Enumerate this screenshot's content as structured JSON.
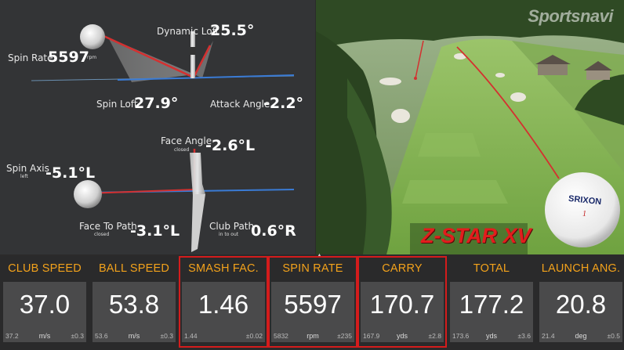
{
  "analysis": {
    "dynamic_loft": {
      "label": "Dynamic Loft",
      "value": "25.5°"
    },
    "spin_rate": {
      "label": "Spin Rate",
      "value": "5597",
      "unit": "rpm"
    },
    "spin_loft": {
      "label": "Spin Loft",
      "value": "27.9°"
    },
    "attack_angle": {
      "label": "Attack Angle",
      "value": "-2.2°"
    },
    "face_angle": {
      "label": "Face Angle",
      "note": "closed",
      "value": "-2.6°L"
    },
    "spin_axis": {
      "label": "Spin Axis",
      "note": "left",
      "value": "-5.1°L"
    },
    "face_to_path": {
      "label": "Face To Path",
      "note": "closed",
      "value": "-3.1°L"
    },
    "club_path": {
      "label": "Club Path",
      "note": "in to out",
      "value": "0.6°R"
    }
  },
  "course": {
    "brand": "Sportsnavi",
    "ball_brand": "SRIXON",
    "ball_number": "1",
    "ad_text": "Z-STAR XV"
  },
  "stats": [
    {
      "label": "CLUB SPEED",
      "value": "37.0",
      "prev": "37.2",
      "unit": "m/s",
      "dev": "±0.3",
      "highlight": false
    },
    {
      "label": "BALL SPEED",
      "value": "53.8",
      "prev": "53.6",
      "unit": "m/s",
      "dev": "±0.3",
      "highlight": false
    },
    {
      "label": "SMASH FAC.",
      "value": "1.46",
      "prev": "1.44",
      "unit": "",
      "dev": "±0.02",
      "highlight": true
    },
    {
      "label": "SPIN RATE",
      "value": "5597",
      "prev": "5832",
      "unit": "rpm",
      "dev": "±235",
      "highlight": true
    },
    {
      "label": "CARRY",
      "value": "170.7",
      "prev": "167.9",
      "unit": "yds",
      "dev": "±2.8",
      "highlight": true
    },
    {
      "label": "TOTAL",
      "value": "177.2",
      "prev": "173.6",
      "unit": "yds",
      "dev": "±3.6",
      "highlight": false
    },
    {
      "label": "LAUNCH ANG.",
      "value": "20.8",
      "prev": "21.4",
      "unit": "deg",
      "dev": "±0.5",
      "highlight": false
    }
  ],
  "colors": {
    "accent": "#f3a21b",
    "highlight": "#d41c1c",
    "panel": "#4a4a4b",
    "blue_line": "#3a7bd5",
    "red_line": "#d43030"
  }
}
